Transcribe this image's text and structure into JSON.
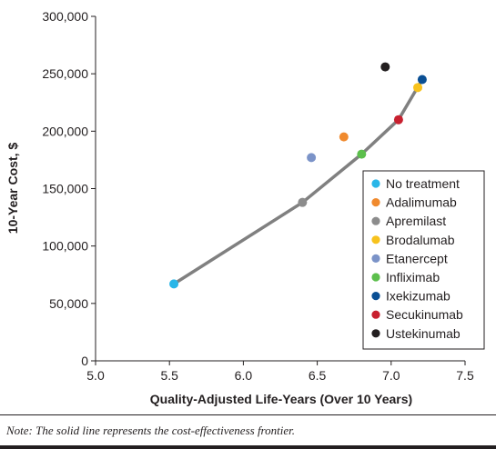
{
  "chart_data": {
    "type": "scatter",
    "xlabel": "Quality-Adjusted Life-Years (Over 10 Years)",
    "ylabel": "10-Year Cost, $",
    "xlim": [
      5.0,
      7.5
    ],
    "ylim": [
      0,
      300000
    ],
    "x_ticks": [
      "5.0",
      "5.5",
      "6.0",
      "6.5",
      "7.0",
      "7.5"
    ],
    "x_tick_values": [
      5.0,
      5.5,
      6.0,
      6.5,
      7.0,
      7.5
    ],
    "y_ticks": [
      "0",
      "50,000",
      "100,000",
      "150,000",
      "200,000",
      "250,000",
      "300,000"
    ],
    "y_tick_values": [
      0,
      50000,
      100000,
      150000,
      200000,
      250000,
      300000
    ],
    "grid": false,
    "legend_position": "right",
    "series": [
      {
        "name": "No treatment",
        "x": 5.53,
        "y": 67000,
        "color": "#29b6e8"
      },
      {
        "name": "Adalimumab",
        "x": 6.68,
        "y": 195000,
        "color": "#f08a2e"
      },
      {
        "name": "Apremilast",
        "x": 6.4,
        "y": 138000,
        "color": "#8c8c8c"
      },
      {
        "name": "Brodalumab",
        "x": 7.18,
        "y": 238000,
        "color": "#f7c21d"
      },
      {
        "name": "Etanercept",
        "x": 6.46,
        "y": 177000,
        "color": "#7b93c8"
      },
      {
        "name": "Infliximab",
        "x": 6.8,
        "y": 180000,
        "color": "#5cbf4c"
      },
      {
        "name": "Ixekizumab",
        "x": 7.21,
        "y": 245000,
        "color": "#0a4f94"
      },
      {
        "name": "Secukinumab",
        "x": 7.05,
        "y": 210000,
        "color": "#c8202f"
      },
      {
        "name": "Ustekinumab",
        "x": 6.96,
        "y": 256000,
        "color": "#231f20"
      }
    ],
    "frontier": {
      "color": "#808080",
      "points": [
        [
          5.53,
          67000
        ],
        [
          6.4,
          138000
        ],
        [
          6.8,
          180000
        ],
        [
          7.05,
          210000
        ],
        [
          7.21,
          245000
        ]
      ]
    }
  },
  "note": "Note: The solid line represents the cost-effectiveness frontier."
}
